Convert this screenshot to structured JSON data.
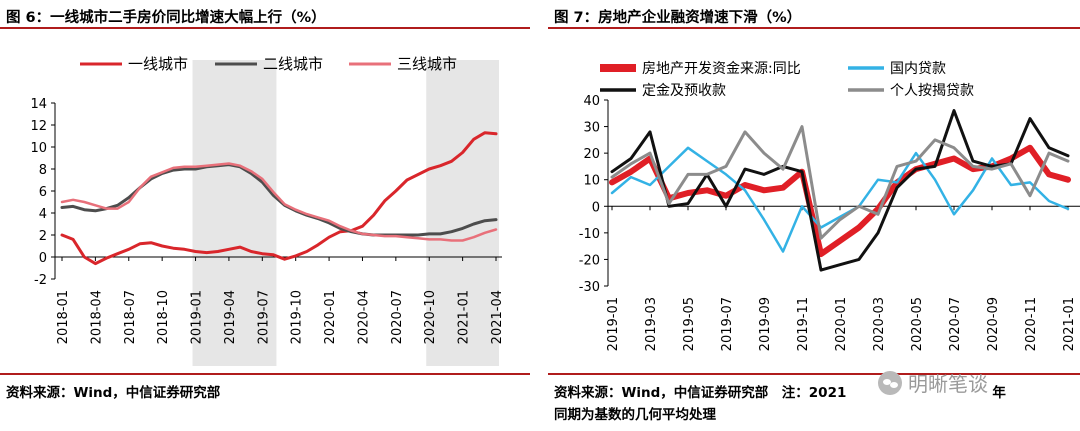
{
  "panels": {
    "left": {
      "title": "图 6：一线城市二手房价同比增速大幅上行（%）",
      "source": "资料来源：Wind，中信证券研究部"
    },
    "right": {
      "title": "图 7：房地产企业融资增速下滑（%）",
      "source_line1": "资料来源：Wind，中信证券研究部　注：2021",
      "source_line1_tail": "年",
      "source_line2": "同期为基数的几何平均处理",
      "watermark": "明晰笔谈"
    }
  },
  "chart_data": [
    {
      "type": "line",
      "title": "一线城市二手房价同比增速大幅上行（%）",
      "x": [
        "2018-01",
        "2018-02",
        "2018-03",
        "2018-04",
        "2018-05",
        "2018-06",
        "2018-07",
        "2018-08",
        "2018-09",
        "2018-10",
        "2018-11",
        "2018-12",
        "2019-01",
        "2019-02",
        "2019-03",
        "2019-04",
        "2019-05",
        "2019-06",
        "2019-07",
        "2019-08",
        "2019-09",
        "2019-10",
        "2019-11",
        "2019-12",
        "2020-01",
        "2020-02",
        "2020-03",
        "2020-04",
        "2020-05",
        "2020-06",
        "2020-07",
        "2020-08",
        "2020-09",
        "2020-10",
        "2020-11",
        "2020-12",
        "2021-01",
        "2021-02",
        "2021-03",
        "2021-04"
      ],
      "x_tick_labels": [
        "2018-01",
        "2018-04",
        "2018-07",
        "2018-10",
        "2019-01",
        "2019-04",
        "2019-07",
        "2019-10",
        "2020-01",
        "2020-04",
        "2020-07",
        "2020-10",
        "2021-01",
        "2021-04"
      ],
      "ylim": [
        -2,
        14
      ],
      "y_ticks": [
        -2,
        0,
        2,
        4,
        6,
        8,
        10,
        12,
        14
      ],
      "shaded_ranges": [
        [
          "2019-01",
          "2019-08"
        ],
        [
          "2020-10",
          "2021-04"
        ]
      ],
      "legend_position": "top",
      "colors": {
        "一线城市": "#d9262b",
        "二线城市": "#4d4d4d",
        "三线城市": "#e8707a",
        "shade": "#e6e6e6"
      },
      "series": [
        {
          "name": "一线城市",
          "values": [
            2.0,
            1.6,
            0.0,
            -0.6,
            -0.1,
            0.3,
            0.7,
            1.2,
            1.3,
            1.0,
            0.8,
            0.7,
            0.5,
            0.4,
            0.5,
            0.7,
            0.9,
            0.5,
            0.3,
            0.2,
            -0.2,
            0.1,
            0.5,
            1.1,
            1.8,
            2.3,
            2.4,
            2.8,
            3.8,
            5.1,
            6.0,
            7.0,
            7.5,
            8.0,
            8.3,
            8.7,
            9.5,
            10.7,
            11.3,
            11.2
          ]
        },
        {
          "name": "二线城市",
          "values": [
            4.5,
            4.6,
            4.3,
            4.2,
            4.4,
            4.7,
            5.4,
            6.3,
            7.1,
            7.6,
            7.9,
            8.0,
            8.0,
            8.2,
            8.3,
            8.4,
            8.2,
            7.6,
            6.8,
            5.6,
            4.7,
            4.2,
            3.8,
            3.5,
            3.1,
            2.6,
            2.3,
            2.1,
            2.0,
            2.0,
            2.0,
            2.0,
            2.0,
            2.1,
            2.1,
            2.3,
            2.6,
            3.0,
            3.3,
            3.4
          ]
        },
        {
          "name": "三线城市",
          "values": [
            5.0,
            5.2,
            5.0,
            4.7,
            4.4,
            4.4,
            5.0,
            6.3,
            7.3,
            7.7,
            8.1,
            8.2,
            8.2,
            8.3,
            8.4,
            8.5,
            8.3,
            7.8,
            7.1,
            5.9,
            4.8,
            4.3,
            3.9,
            3.6,
            3.3,
            2.8,
            2.4,
            2.1,
            2.0,
            1.9,
            1.9,
            1.8,
            1.7,
            1.6,
            1.6,
            1.5,
            1.5,
            1.8,
            2.2,
            2.5
          ]
        }
      ]
    },
    {
      "type": "line",
      "title": "房地产企业融资增速下滑（%）",
      "x": [
        "2019-01",
        "2019-02",
        "2019-03",
        "2019-04",
        "2019-05",
        "2019-06",
        "2019-07",
        "2019-08",
        "2019-09",
        "2019-10",
        "2019-11",
        "2019-12",
        "2020-01",
        "2020-02",
        "2020-03",
        "2020-04",
        "2020-05",
        "2020-06",
        "2020-07",
        "2020-08",
        "2020-09",
        "2020-10",
        "2020-11",
        "2020-12",
        "2021-01"
      ],
      "x_tick_labels": [
        "2019-01",
        "2019-03",
        "2019-05",
        "2019-07",
        "2019-09",
        "2019-11",
        "2020-01",
        "2020-03",
        "2020-05",
        "2020-07",
        "2020-09",
        "2020-11",
        "2021-01"
      ],
      "ylim": [
        -30,
        40
      ],
      "y_ticks": [
        -30,
        -20,
        -10,
        0,
        10,
        20,
        30,
        40
      ],
      "legend_position": "top",
      "colors": {
        "房地产开发资金来源:同比": "#e01f26",
        "国内贷款": "#33b2e5",
        "定金及预收款": "#111111",
        "个人按揭贷款": "#8c8c8c"
      },
      "series": [
        {
          "name": "房地产开发资金来源:同比",
          "values": [
            9,
            13,
            18,
            3,
            5,
            6,
            4,
            8,
            6,
            7,
            13,
            -18,
            -13,
            -8,
            -1,
            9,
            14,
            16,
            18,
            14,
            15,
            18,
            22,
            12,
            10
          ]
        },
        {
          "name": "国内贷款",
          "values": [
            5,
            11,
            8,
            15,
            22,
            17,
            12,
            6,
            -5,
            -17,
            0,
            -8,
            -4,
            0,
            10,
            9,
            20,
            10,
            -3,
            6,
            18,
            8,
            9,
            2,
            -1
          ]
        },
        {
          "name": "定金及预收款",
          "values": [
            13,
            18,
            28,
            0,
            1,
            12,
            0,
            14,
            12,
            15,
            13,
            -24,
            -22,
            -20,
            -10,
            7,
            14,
            15,
            36,
            17,
            15,
            16,
            33,
            22,
            19
          ]
        },
        {
          "name": "个人按揭贷款",
          "values": [
            11,
            16,
            20,
            1,
            12,
            12,
            15,
            28,
            20,
            14,
            30,
            -12,
            -5,
            0,
            -3,
            15,
            17,
            25,
            22,
            15,
            14,
            16,
            4,
            20,
            17
          ]
        }
      ]
    }
  ]
}
